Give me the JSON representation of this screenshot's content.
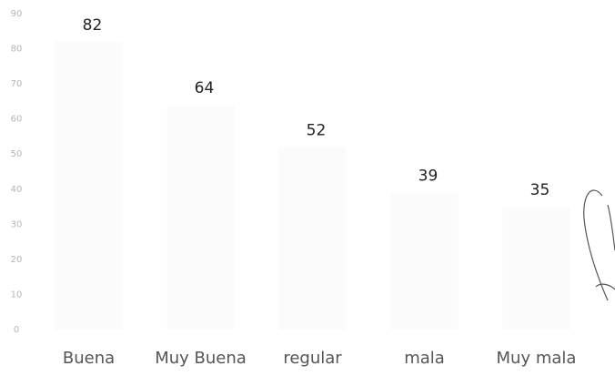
{
  "chart_data": {
    "type": "bar",
    "categories": [
      "Buena",
      "Muy Buena",
      "regular",
      "mala",
      "Muy mala"
    ],
    "values": [
      82,
      64,
      52,
      39,
      35
    ],
    "color": "#fbfbfb",
    "ylim": [
      0,
      90
    ],
    "yticks": [
      0,
      10,
      20,
      30,
      40,
      50,
      60,
      70,
      80,
      90
    ]
  }
}
